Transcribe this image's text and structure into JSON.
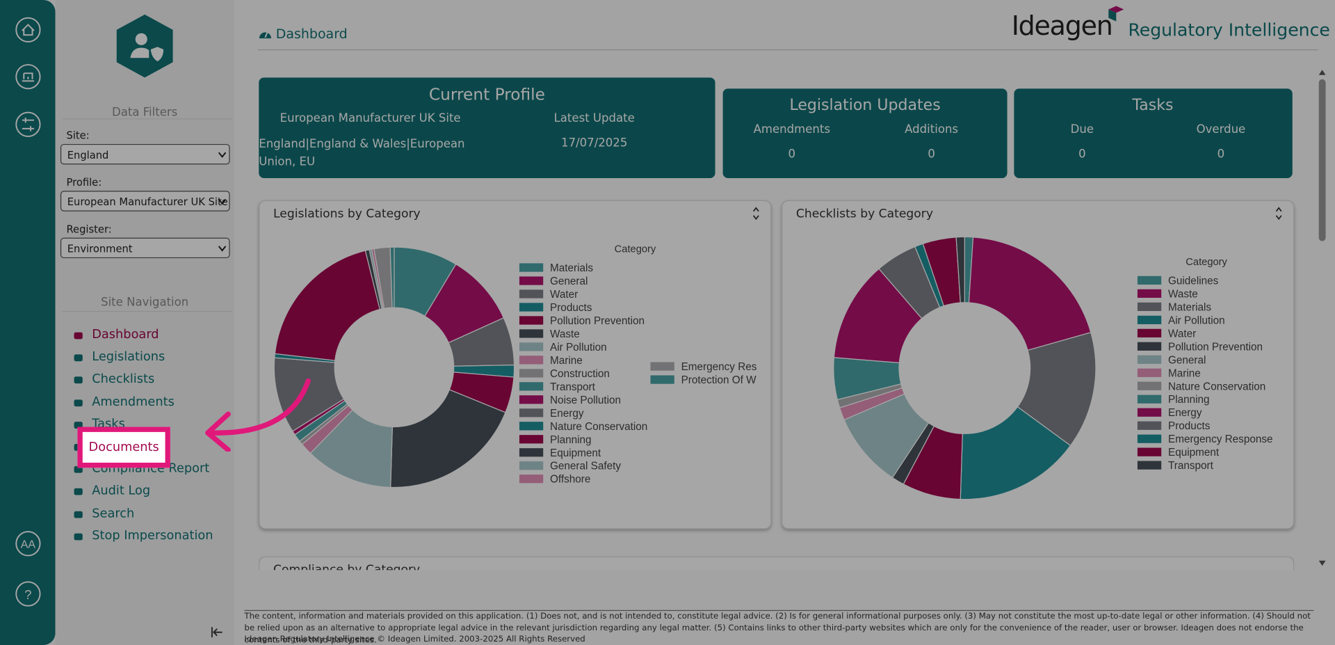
{
  "rail": {
    "accessibility": "AA",
    "help": "?"
  },
  "sidebar": {
    "data_filters_title": "Data Filters",
    "filters": [
      {
        "label": "Site:",
        "value": "England"
      },
      {
        "label": "Profile:",
        "value": "European Manufacturer UK Site"
      },
      {
        "label": "Register:",
        "value": "Environment"
      }
    ],
    "nav_title": "Site Navigation",
    "nav": [
      "Dashboard",
      "Legislations",
      "Checklists",
      "Amendments",
      "Tasks",
      "Documents",
      "Compliance Report",
      "Audit Log",
      "Search",
      "Stop Impersonation"
    ]
  },
  "header": {
    "page_title": "Dashboard",
    "brand": "Ideagen",
    "product": "Regulatory Intelligence"
  },
  "current_profile": {
    "title": "Current Profile",
    "site": "European Manufacturer UK Site",
    "latest_update_label": "Latest Update",
    "location": "England|England & Wales|European Union, EU",
    "latest_update": "17/07/2025"
  },
  "legislation_updates": {
    "title": "Legislation Updates",
    "columns": [
      {
        "label": "Amendments",
        "value": "0"
      },
      {
        "label": "Additions",
        "value": "0"
      }
    ]
  },
  "tasks": {
    "title": "Tasks",
    "columns": [
      {
        "label": "Due",
        "value": "0"
      },
      {
        "label": "Overdue",
        "value": "0"
      }
    ]
  },
  "charts": [
    {
      "type": "pie",
      "title": "Legislations by Category",
      "legend_title": "Category",
      "categories": [
        "Materials",
        "General",
        "Water",
        "Products",
        "Pollution Prevention",
        "Waste",
        "Air Pollution",
        "Marine",
        "Construction",
        "Transport",
        "Noise Pollution",
        "Energy",
        "Nature Conservation",
        "Planning",
        "Equipment",
        "General Safety",
        "Offshore",
        "Emergency Res",
        "Protection Of W"
      ],
      "values": [
        8,
        9,
        6,
        1.5,
        4.5,
        18,
        11,
        1.5,
        0.5,
        1,
        0.5,
        9.5,
        0.5,
        18,
        0.5,
        0.3,
        0.3,
        2,
        0.5
      ],
      "colors": [
        "#4aa3a6",
        "#b3136f",
        "#7d8087",
        "#1f8f99",
        "#a0094f",
        "#48505a",
        "#aac9cc",
        "#e48fb8",
        "#b0b0b3",
        "#4aa3a6",
        "#b3136f",
        "#7d8087",
        "#1f8f99",
        "#a0094f",
        "#48505a",
        "#aac9cc",
        "#e48fb8",
        "#b0b0b3",
        "#4aa3a6"
      ]
    },
    {
      "type": "pie",
      "title": "Checklists by Category",
      "legend_title": "Category",
      "categories": [
        "Guidelines",
        "Waste",
        "Materials",
        "Air Pollution",
        "Water",
        "Pollution Prevention",
        "General",
        "Marine",
        "Nature Conservation",
        "Planning",
        "Energy",
        "Products",
        "Emergency Response",
        "Equipment",
        "Transport"
      ],
      "values": [
        1,
        19,
        14,
        15,
        7,
        1.5,
        9,
        1.5,
        1,
        5,
        12,
        5,
        1,
        4,
        1
      ],
      "colors": [
        "#4aa3a6",
        "#b3136f",
        "#7d8087",
        "#1f8f99",
        "#a0094f",
        "#48505a",
        "#aac9cc",
        "#e48fb8",
        "#b0b0b3",
        "#4aa3a6",
        "#b3136f",
        "#7d8087",
        "#1f8f99",
        "#a0094f",
        "#48505a"
      ]
    }
  ],
  "next_panel_title": "Compliance by Category",
  "footer": {
    "disclaimer": "The content, information and materials provided on this application. (1) Does not, and is not intended to, constitute legal advice. (2) Is for general informational purposes only. (3) May not constitute the most up-to-date legal or other information. (4) Should not be relied upon as an alternative to appropriate legal advice in the relevant jurisdiction regarding any legal matter. (5) Contains links to other third-party websites which are only for the convenience of the reader, user or browser. Ideagen does not endorse the contents of the third-party sites.",
    "copyright": "Ideagen Regulatory Intelligence © Ideagen Limited. 2003-2025 All Rights Reserved"
  }
}
